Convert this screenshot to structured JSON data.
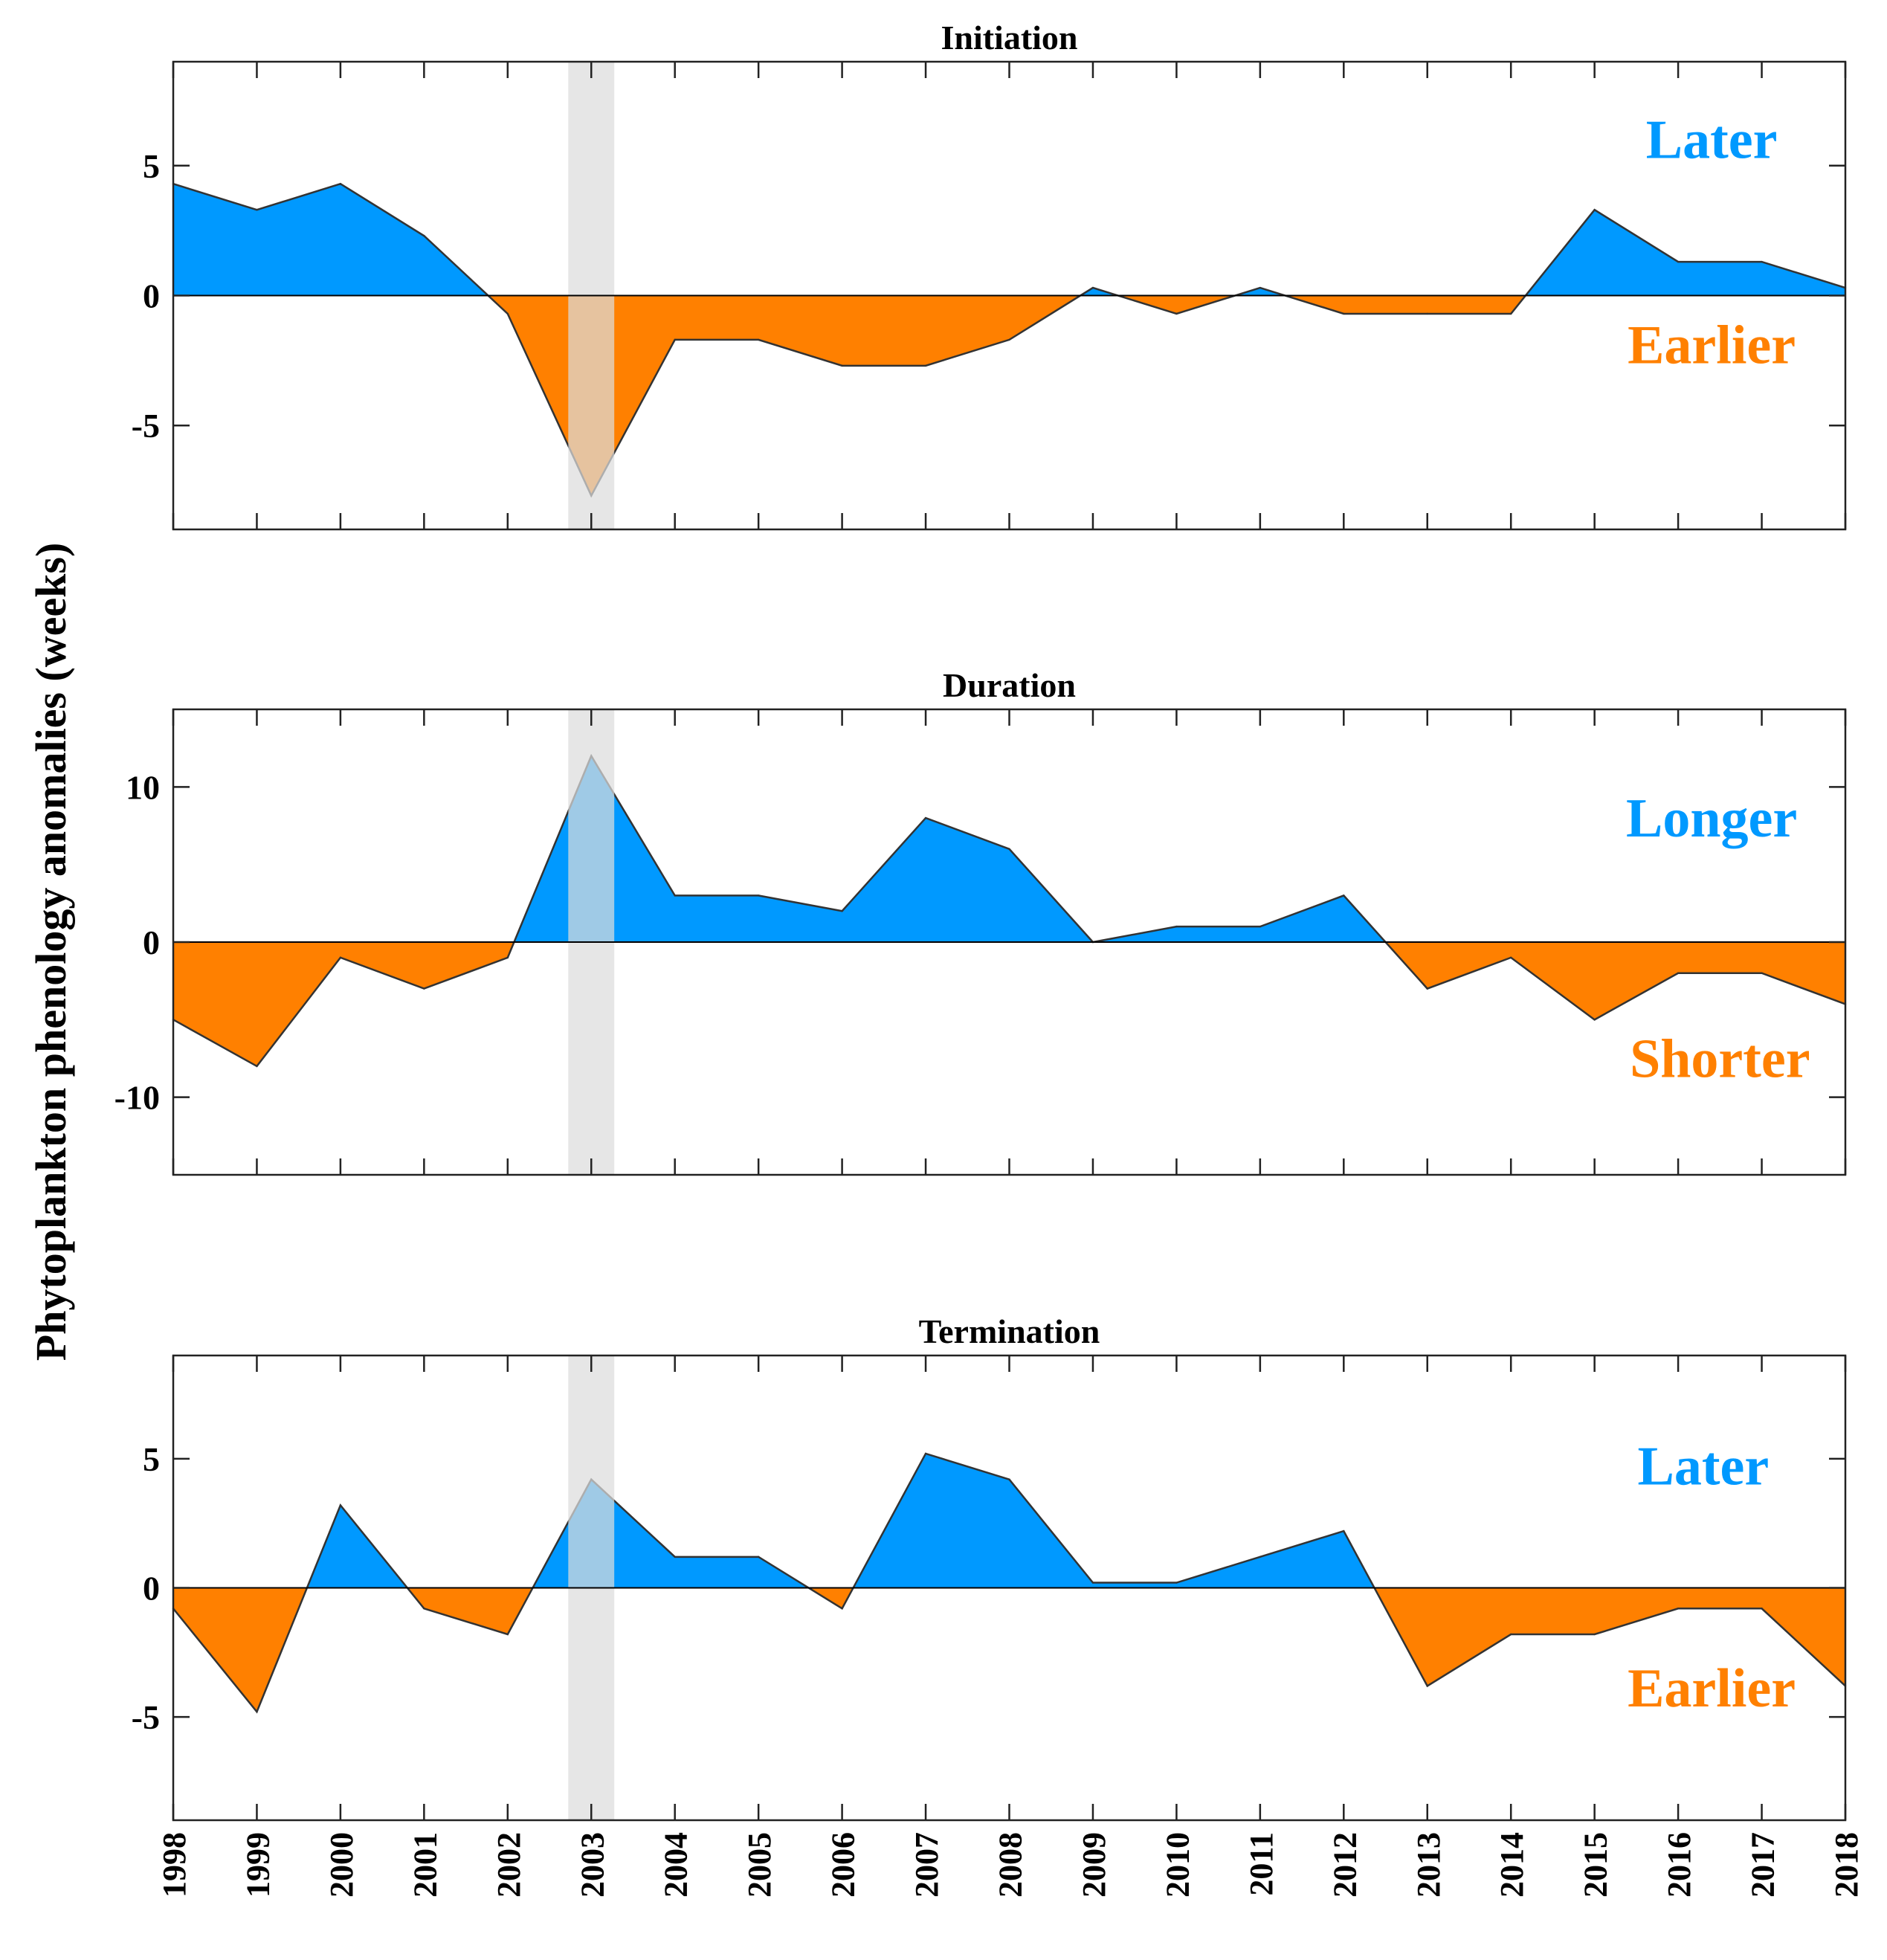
{
  "colors": {
    "positive": "#0099FF",
    "negative": "#FF8000",
    "highlight": "#DCDCDC"
  },
  "ylabel": "Phytoplankton phenology anomalies (weeks)",
  "chart_data": [
    {
      "type": "area",
      "title": "Initiation",
      "x": [
        1998,
        1999,
        2000,
        2001,
        2002,
        2003,
        2004,
        2005,
        2006,
        2007,
        2008,
        2009,
        2010,
        2011,
        2012,
        2013,
        2014,
        2015,
        2016,
        2017,
        2018
      ],
      "values": [
        4.3,
        3.3,
        4.3,
        2.3,
        -0.7,
        -7.7,
        -1.7,
        -1.7,
        -2.7,
        -2.7,
        -1.7,
        0.3,
        -0.7,
        0.3,
        -0.7,
        -0.7,
        -0.7,
        3.3,
        1.3,
        1.3,
        0.3
      ],
      "xlim": [
        1998,
        2018
      ],
      "ylim": [
        -9,
        9
      ],
      "yticks": [
        -5,
        0,
        5
      ],
      "highlight_x": 2003,
      "annotations": [
        {
          "text": "Later",
          "color": "positive",
          "anchor_x": 2016.4,
          "anchor_y": 5.3
        },
        {
          "text": "Earlier",
          "color": "negative",
          "anchor_x": 2016.4,
          "anchor_y": -2.6
        }
      ]
    },
    {
      "type": "area",
      "title": "Duration",
      "x": [
        1998,
        1999,
        2000,
        2001,
        2002,
        2003,
        2004,
        2005,
        2006,
        2007,
        2008,
        2009,
        2010,
        2011,
        2012,
        2013,
        2014,
        2015,
        2016,
        2017,
        2018
      ],
      "values": [
        -5,
        -8,
        -1,
        -3,
        -1,
        12,
        3,
        3,
        2,
        8,
        6,
        0,
        1,
        1,
        3,
        -3,
        -1,
        -5,
        -2,
        -2,
        -4
      ],
      "xlim": [
        1998,
        2018
      ],
      "ylim": [
        -15,
        15
      ],
      "yticks": [
        -10,
        0,
        10
      ],
      "highlight_x": 2003,
      "annotations": [
        {
          "text": "Longer",
          "color": "positive",
          "anchor_x": 2016.4,
          "anchor_y": 6.8
        },
        {
          "text": "Shorter",
          "color": "negative",
          "anchor_x": 2016.5,
          "anchor_y": -8.7
        }
      ]
    },
    {
      "type": "area",
      "title": "Termination",
      "x": [
        1998,
        1999,
        2000,
        2001,
        2002,
        2003,
        2004,
        2005,
        2006,
        2007,
        2008,
        2009,
        2010,
        2011,
        2012,
        2013,
        2014,
        2015,
        2016,
        2017,
        2018
      ],
      "values": [
        -0.8,
        -4.8,
        3.2,
        -0.8,
        -1.8,
        4.2,
        1.2,
        1.2,
        -0.8,
        5.2,
        4.2,
        0.2,
        0.2,
        1.2,
        2.2,
        -3.8,
        -1.8,
        -1.8,
        -0.8,
        -0.8,
        -3.8
      ],
      "xlim": [
        1998,
        2018
      ],
      "ylim": [
        -9,
        9
      ],
      "yticks": [
        -5,
        0,
        5
      ],
      "highlight_x": 2003,
      "xtick_labels": [
        "1998",
        "1999",
        "2000",
        "2001",
        "2002",
        "2003",
        "2004",
        "2005",
        "2006",
        "2007",
        "2008",
        "2009",
        "2010",
        "2011",
        "2012",
        "2013",
        "2014",
        "2015",
        "2016",
        "2017",
        "2018"
      ],
      "annotations": [
        {
          "text": "Later",
          "color": "positive",
          "anchor_x": 2016.3,
          "anchor_y": 4.0
        },
        {
          "text": "Earlier",
          "color": "negative",
          "anchor_x": 2016.4,
          "anchor_y": -4.6
        }
      ]
    }
  ]
}
